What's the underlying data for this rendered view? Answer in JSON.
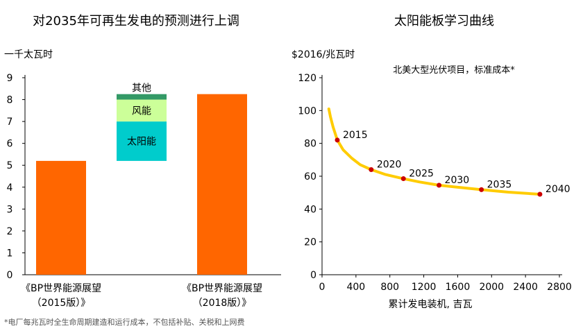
{
  "footnote": "*电厂每兆瓦时全生命周期建造和运行成本，不包括补贴、关税和上网费",
  "chart_data": [
    {
      "type": "bar",
      "title": "对2035年可再生发电的预测进行上调",
      "ylabel": "一千太瓦时",
      "ylim": [
        0,
        9
      ],
      "yticks": [
        0,
        1,
        2,
        3,
        4,
        5,
        6,
        7,
        8,
        9
      ],
      "categories": [
        [
          "《BP世界能源展望",
          "（2015版）》"
        ],
        [
          "《BP世界能源展望",
          "（2018版）》"
        ]
      ],
      "values": [
        5.2,
        8.25
      ],
      "bar_color": "#ff6600",
      "increment": {
        "base": 5.2,
        "segments": [
          {
            "name": "太阳能",
            "value": 1.8,
            "color": "#00cccc"
          },
          {
            "name": "风能",
            "value": 1.0,
            "color": "#ccff99"
          },
          {
            "name": "其他",
            "value": 0.25,
            "color": "#339966"
          }
        ]
      }
    },
    {
      "type": "line",
      "title": "太阳能板学习曲线",
      "ylabel": "$2016/兆瓦时",
      "subtitle": "北美大型光伏项目，标准成本*",
      "xlabel": "累计发电装机, 吉瓦",
      "xlim": [
        0,
        2800
      ],
      "ylim": [
        0,
        120
      ],
      "xticks": [
        0,
        400,
        800,
        1200,
        1600,
        2000,
        2400,
        2800
      ],
      "yticks": [
        0,
        20,
        40,
        60,
        80,
        100,
        120
      ],
      "line_color": "#ffcc00",
      "point_color": "#cc0000",
      "curve": [
        {
          "x": 80,
          "y": 101
        },
        {
          "x": 100,
          "y": 96
        },
        {
          "x": 130,
          "y": 90
        },
        {
          "x": 180,
          "y": 82
        },
        {
          "x": 250,
          "y": 76
        },
        {
          "x": 350,
          "y": 71
        },
        {
          "x": 450,
          "y": 67
        },
        {
          "x": 580,
          "y": 64
        },
        {
          "x": 750,
          "y": 61
        },
        {
          "x": 960,
          "y": 58.5
        },
        {
          "x": 1150,
          "y": 56.5
        },
        {
          "x": 1380,
          "y": 54.5
        },
        {
          "x": 1600,
          "y": 53.3
        },
        {
          "x": 1880,
          "y": 51.8
        },
        {
          "x": 2200,
          "y": 50.3
        },
        {
          "x": 2570,
          "y": 49
        }
      ],
      "points": [
        {
          "label": "2015",
          "x": 180,
          "y": 82
        },
        {
          "label": "2020",
          "x": 580,
          "y": 64
        },
        {
          "label": "2025",
          "x": 960,
          "y": 58.5
        },
        {
          "label": "2030",
          "x": 1380,
          "y": 54.5
        },
        {
          "label": "2035",
          "x": 1880,
          "y": 51.8
        },
        {
          "label": "2040",
          "x": 2570,
          "y": 49
        }
      ]
    }
  ]
}
